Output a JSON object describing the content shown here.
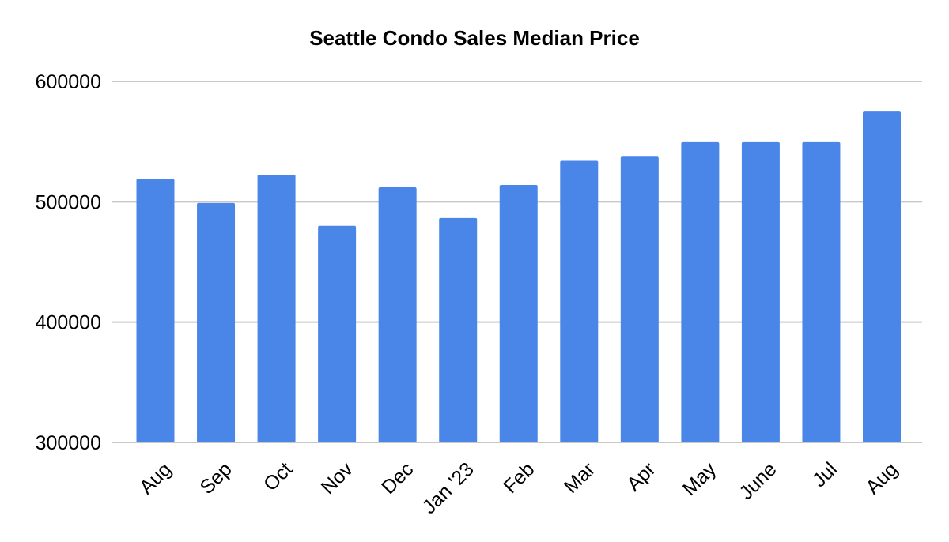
{
  "chart_data": {
    "type": "bar",
    "title": "Seattle Condo Sales Median Price",
    "xlabel": "",
    "ylabel": "",
    "categories": [
      "Aug",
      "Sep",
      "Oct",
      "Nov",
      "Dec",
      "Jan '23",
      "Feb",
      "Mar",
      "Apr",
      "May",
      "June",
      "Jul",
      "Aug"
    ],
    "values": [
      519000,
      499000,
      522500,
      480000,
      512000,
      486500,
      514000,
      534000,
      537500,
      549500,
      549500,
      549500,
      575000
    ],
    "ylim": [
      300000,
      600000
    ],
    "yticks": [
      "300000",
      "400000",
      "500000",
      "600000"
    ],
    "ytick_values": [
      300000,
      400000,
      500000,
      600000
    ],
    "grid": true,
    "legend": "none",
    "bar_color": "#4a86e8",
    "grid_color": "#c8c8c8"
  }
}
